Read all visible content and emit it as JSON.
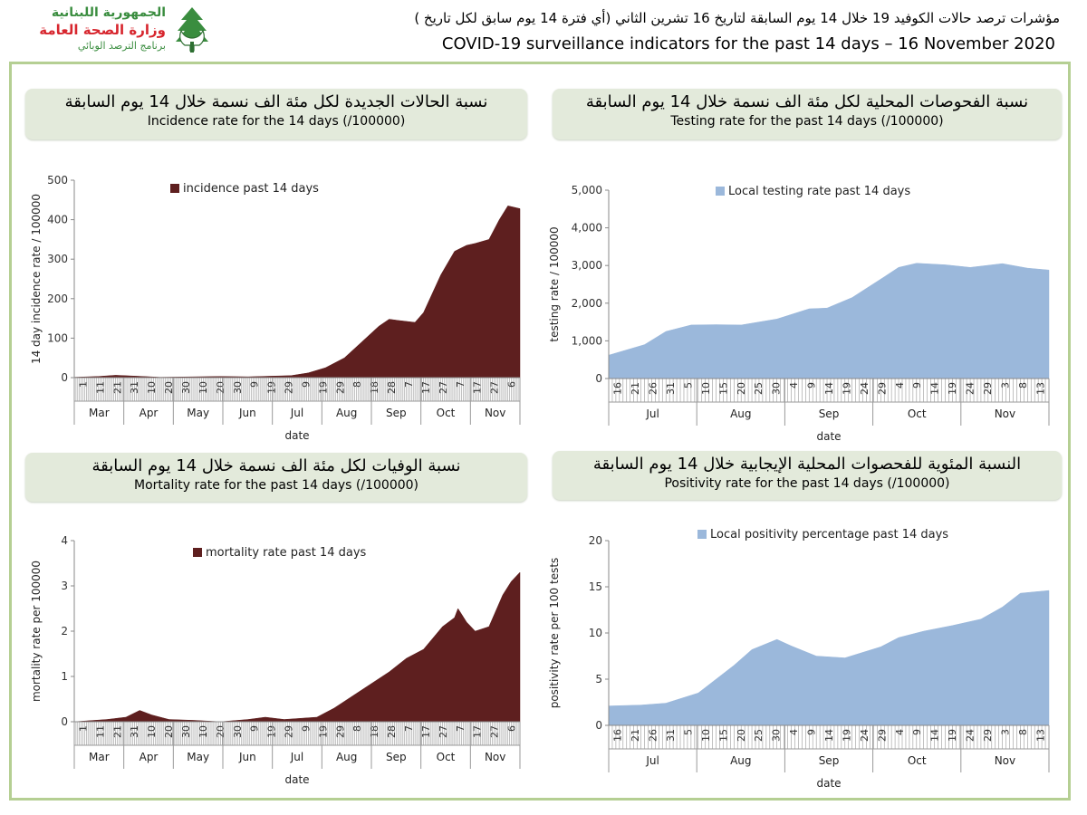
{
  "header": {
    "arabic_title": "مؤشرات ترصد حالات الكوفيد 19 خلال 14 يوم السابقة لتاريخ 16 تشرين الثاني (أي فترة 14 يوم سابق لكل تاريخ )",
    "english_title": "COVID-19 surveillance indicators for the past 14 days – 16 November 2020"
  },
  "logo": {
    "line1": "الجمهورية اللبنانية",
    "line2": "وزارة الصحة العامة",
    "line3": "برنامج الترصد الوبائي",
    "icon": "cedar-hands-icon",
    "colors": {
      "red": "#d7262e",
      "green": "#3a8d3f"
    }
  },
  "panels": {
    "incidence": {
      "title_ar": "نسبة الحالات الجديدة لكل مئة الف نسمة خلال 14 يوم السابقة",
      "title_en": "Incidence rate for the 14 days  (/100000)"
    },
    "testing": {
      "title_ar": "نسبة الفحوصات المحلية لكل مئة الف نسمة خلال 14 يوم السابقة",
      "title_en": "Testing rate for the past 14 days (/100000)"
    },
    "mortality": {
      "title_ar": "نسبة الوفيات لكل مئة الف نسمة خلال 14 يوم السابقة",
      "title_en": "Mortality rate for the past 14 days (/100000)"
    },
    "positivity": {
      "title_ar": "النسبة المئوية للفحصوات المحلية الإيجابية خلال 14 يوم السابقة",
      "title_en": "Positivity rate for the past 14 days (/100000)"
    }
  },
  "chart_data": [
    {
      "id": "incidence",
      "type": "area",
      "xlabel": "date",
      "ylabel": "14 day incidence rate / 100000",
      "ylim": [
        0,
        500
      ],
      "yticks": [
        0,
        100,
        200,
        300,
        400,
        500
      ],
      "legend": "top-left",
      "color": "#5e1f1f",
      "x_start": "2020-03-01",
      "x_end": "2020-11-15",
      "months": [
        "Mar",
        "Apr",
        "May",
        "Jun",
        "Jul",
        "Aug",
        "Sep",
        "Oct",
        "Nov"
      ],
      "tick_labels": [
        "1",
        "11",
        "21",
        "31",
        "10",
        "20",
        "30",
        "10",
        "20",
        "30",
        "9",
        "19",
        "29",
        "9",
        "19",
        "29",
        "8",
        "18",
        "28",
        "7",
        "17",
        "27",
        "7",
        "17",
        "27",
        "6"
      ],
      "series": [
        {
          "name": "incidence past 14 days",
          "points": [
            [
              "2020-03-01",
              1
            ],
            [
              "2020-03-15",
              3
            ],
            [
              "2020-03-25",
              6
            ],
            [
              "2020-04-05",
              4
            ],
            [
              "2020-04-20",
              1
            ],
            [
              "2020-05-10",
              2
            ],
            [
              "2020-05-25",
              3
            ],
            [
              "2020-06-10",
              2
            ],
            [
              "2020-06-25",
              4
            ],
            [
              "2020-07-05",
              5
            ],
            [
              "2020-07-15",
              12
            ],
            [
              "2020-07-25",
              25
            ],
            [
              "2020-08-05",
              50
            ],
            [
              "2020-08-15",
              90
            ],
            [
              "2020-08-25",
              130
            ],
            [
              "2020-08-31",
              148
            ],
            [
              "2020-09-05",
              145
            ],
            [
              "2020-09-15",
              140
            ],
            [
              "2020-09-20",
              165
            ],
            [
              "2020-09-30",
              260
            ],
            [
              "2020-10-08",
              320
            ],
            [
              "2020-10-15",
              335
            ],
            [
              "2020-10-20",
              340
            ],
            [
              "2020-10-28",
              350
            ],
            [
              "2020-11-03",
              400
            ],
            [
              "2020-11-08",
              435
            ],
            [
              "2020-11-13",
              430
            ],
            [
              "2020-11-15",
              428
            ]
          ]
        }
      ]
    },
    {
      "id": "testing",
      "type": "area",
      "xlabel": "date",
      "ylabel": "testing rate / 100000",
      "ylim": [
        0,
        5000
      ],
      "yticks": [
        "0",
        "1,000",
        "2,000",
        "3,000",
        "4,000",
        "5,000"
      ],
      "legend": "top-left",
      "color": "#9bb8db",
      "x_start": "2020-07-16",
      "x_end": "2020-11-16",
      "months": [
        "Jul",
        "Aug",
        "Sep",
        "Oct",
        "Nov"
      ],
      "tick_labels": [
        "16",
        "21",
        "26",
        "31",
        "5",
        "10",
        "15",
        "20",
        "25",
        "30",
        "4",
        "9",
        "14",
        "19",
        "24",
        "29",
        "4",
        "9",
        "14",
        "19",
        "24",
        "29",
        "3",
        "8",
        "13"
      ],
      "series": [
        {
          "name": "Local testing rate past 14 days",
          "points": [
            [
              "2020-07-16",
              620
            ],
            [
              "2020-07-26",
              900
            ],
            [
              "2020-08-01",
              1250
            ],
            [
              "2020-08-08",
              1420
            ],
            [
              "2020-08-15",
              1430
            ],
            [
              "2020-08-22",
              1420
            ],
            [
              "2020-09-01",
              1580
            ],
            [
              "2020-09-10",
              1850
            ],
            [
              "2020-09-15",
              1870
            ],
            [
              "2020-09-22",
              2150
            ],
            [
              "2020-10-01",
              2700
            ],
            [
              "2020-10-05",
              2950
            ],
            [
              "2020-10-10",
              3060
            ],
            [
              "2020-10-18",
              3020
            ],
            [
              "2020-10-25",
              2950
            ],
            [
              "2020-11-03",
              3050
            ],
            [
              "2020-11-10",
              2930
            ],
            [
              "2020-11-16",
              2880
            ]
          ]
        }
      ]
    },
    {
      "id": "mortality",
      "type": "area",
      "xlabel": "date",
      "ylabel": "mortality rate per 100000",
      "ylim": [
        0,
        4
      ],
      "yticks": [
        0,
        1,
        2,
        3,
        4
      ],
      "legend": "top-center",
      "color": "#5e1f1f",
      "x_start": "2020-03-01",
      "x_end": "2020-11-15",
      "months": [
        "Mar",
        "Apr",
        "May",
        "Jun",
        "Jul",
        "Aug",
        "Sep",
        "Oct",
        "Nov"
      ],
      "tick_labels": [
        "1",
        "11",
        "21",
        "31",
        "10",
        "20",
        "30",
        "10",
        "20",
        "30",
        "9",
        "19",
        "29",
        "9",
        "19",
        "29",
        "8",
        "18",
        "28",
        "7",
        "17",
        "27",
        "7",
        "17",
        "27",
        "6"
      ],
      "series": [
        {
          "name": "mortality rate past 14 days",
          "points": [
            [
              "2020-03-01",
              0.0
            ],
            [
              "2020-03-20",
              0.05
            ],
            [
              "2020-03-31",
              0.1
            ],
            [
              "2020-04-08",
              0.25
            ],
            [
              "2020-04-15",
              0.15
            ],
            [
              "2020-04-25",
              0.05
            ],
            [
              "2020-05-10",
              0.03
            ],
            [
              "2020-05-25",
              0.0
            ],
            [
              "2020-06-10",
              0.05
            ],
            [
              "2020-06-20",
              0.1
            ],
            [
              "2020-07-01",
              0.05
            ],
            [
              "2020-07-20",
              0.1
            ],
            [
              "2020-07-30",
              0.3
            ],
            [
              "2020-08-15",
              0.7
            ],
            [
              "2020-08-31",
              1.1
            ],
            [
              "2020-09-10",
              1.4
            ],
            [
              "2020-09-20",
              1.6
            ],
            [
              "2020-10-01",
              2.1
            ],
            [
              "2020-10-08",
              2.3
            ],
            [
              "2020-10-10",
              2.5
            ],
            [
              "2020-10-15",
              2.2
            ],
            [
              "2020-10-20",
              2.0
            ],
            [
              "2020-10-28",
              2.1
            ],
            [
              "2020-11-05",
              2.8
            ],
            [
              "2020-11-10",
              3.1
            ],
            [
              "2020-11-15",
              3.3
            ]
          ]
        }
      ]
    },
    {
      "id": "positivity",
      "type": "area",
      "xlabel": "date",
      "ylabel": "positivity rate per 100 tests",
      "ylim": [
        0,
        20
      ],
      "yticks": [
        0,
        5,
        10,
        15,
        20
      ],
      "legend": "top-left",
      "color": "#9bb8db",
      "x_start": "2020-07-16",
      "x_end": "2020-11-16",
      "months": [
        "Jul",
        "Aug",
        "Sep",
        "Oct",
        "Nov"
      ],
      "tick_labels": [
        "16",
        "21",
        "26",
        "31",
        "5",
        "10",
        "15",
        "20",
        "25",
        "30",
        "4",
        "9",
        "14",
        "19",
        "24",
        "29",
        "4",
        "9",
        "14",
        "19",
        "24",
        "29",
        "3",
        "8",
        "13"
      ],
      "series": [
        {
          "name": "Local positivity percentage past 14 days",
          "points": [
            [
              "2020-07-16",
              2.1
            ],
            [
              "2020-07-25",
              2.2
            ],
            [
              "2020-08-01",
              2.4
            ],
            [
              "2020-08-10",
              3.5
            ],
            [
              "2020-08-20",
              6.5
            ],
            [
              "2020-08-25",
              8.2
            ],
            [
              "2020-09-01",
              9.3
            ],
            [
              "2020-09-05",
              8.6
            ],
            [
              "2020-09-12",
              7.5
            ],
            [
              "2020-09-20",
              7.3
            ],
            [
              "2020-09-30",
              8.5
            ],
            [
              "2020-10-05",
              9.5
            ],
            [
              "2020-10-12",
              10.2
            ],
            [
              "2020-10-20",
              10.8
            ],
            [
              "2020-10-28",
              11.5
            ],
            [
              "2020-11-03",
              12.8
            ],
            [
              "2020-11-08",
              14.3
            ],
            [
              "2020-11-16",
              14.6
            ]
          ]
        }
      ]
    }
  ]
}
